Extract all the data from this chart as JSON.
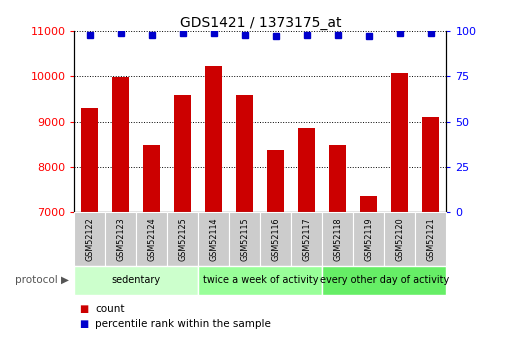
{
  "title": "GDS1421 / 1373175_at",
  "samples": [
    "GSM52122",
    "GSM52123",
    "GSM52124",
    "GSM52125",
    "GSM52114",
    "GSM52115",
    "GSM52116",
    "GSM52117",
    "GSM52118",
    "GSM52119",
    "GSM52120",
    "GSM52121"
  ],
  "counts": [
    9300,
    9980,
    8480,
    9580,
    10220,
    9580,
    8380,
    8860,
    8480,
    7360,
    10080,
    9100
  ],
  "percentile_ranks": [
    98,
    99,
    98,
    99,
    99,
    98,
    97,
    98,
    98,
    97,
    99,
    99
  ],
  "bar_color": "#cc0000",
  "dot_color": "#0000cc",
  "ylim_left": [
    7000,
    11000
  ],
  "ylim_right": [
    0,
    100
  ],
  "yticks_left": [
    7000,
    8000,
    9000,
    10000,
    11000
  ],
  "yticks_right": [
    0,
    25,
    50,
    75,
    100
  ],
  "groups": [
    {
      "label": "sedentary",
      "start": 0,
      "end": 4,
      "color": "#ccffcc"
    },
    {
      "label": "twice a week of activity",
      "start": 4,
      "end": 8,
      "color": "#99ff99"
    },
    {
      "label": "every other day of activity",
      "start": 8,
      "end": 12,
      "color": "#66ee66"
    }
  ],
  "group_colors": [
    "#ccffcc",
    "#99ff99",
    "#66ee66"
  ],
  "protocol_label": "protocol",
  "legend_count_label": "count",
  "legend_pct_label": "percentile rank within the sample",
  "bar_bottom": 7000,
  "sample_box_color": "#cccccc",
  "title_fontsize": 10,
  "tick_fontsize": 8,
  "bar_width": 0.55
}
